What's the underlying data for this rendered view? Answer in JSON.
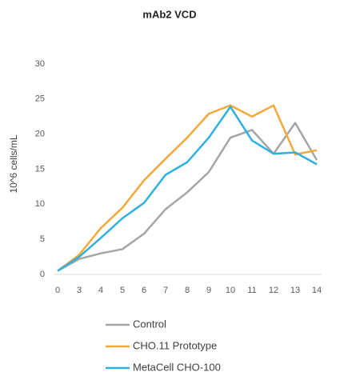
{
  "chart_data": {
    "type": "line",
    "title": "mAb2 VCD",
    "ylabel": "10^6 cells/mL",
    "categories": [
      "0",
      "3",
      "4",
      "5",
      "6",
      "7",
      "8",
      "9",
      "10",
      "11",
      "12",
      "13",
      "14"
    ],
    "series": [
      {
        "name": "Control",
        "color": "#a5a5a5",
        "values": [
          0.5,
          2.2,
          3.0,
          3.6,
          5.8,
          9.3,
          11.7,
          14.6,
          19.5,
          20.6,
          17.2,
          21.6,
          16.3
        ]
      },
      {
        "name": "CHO.11 Prototype",
        "color": "#f2a93b",
        "values": [
          0.5,
          2.8,
          6.6,
          9.5,
          13.4,
          16.5,
          19.5,
          22.9,
          24.1,
          22.5,
          24.1,
          17.1,
          17.7
        ]
      },
      {
        "name": "MetaCell CHO-100",
        "color": "#2fb0e0",
        "values": [
          0.5,
          2.5,
          5.2,
          8.0,
          10.2,
          14.2,
          16.0,
          19.5,
          23.9,
          19.1,
          17.2,
          17.4,
          15.7
        ]
      }
    ],
    "ylim": [
      0,
      30
    ],
    "yticks": [
      0,
      5,
      10,
      15,
      20,
      25,
      30
    ],
    "grid": false,
    "legend": "bottom"
  }
}
